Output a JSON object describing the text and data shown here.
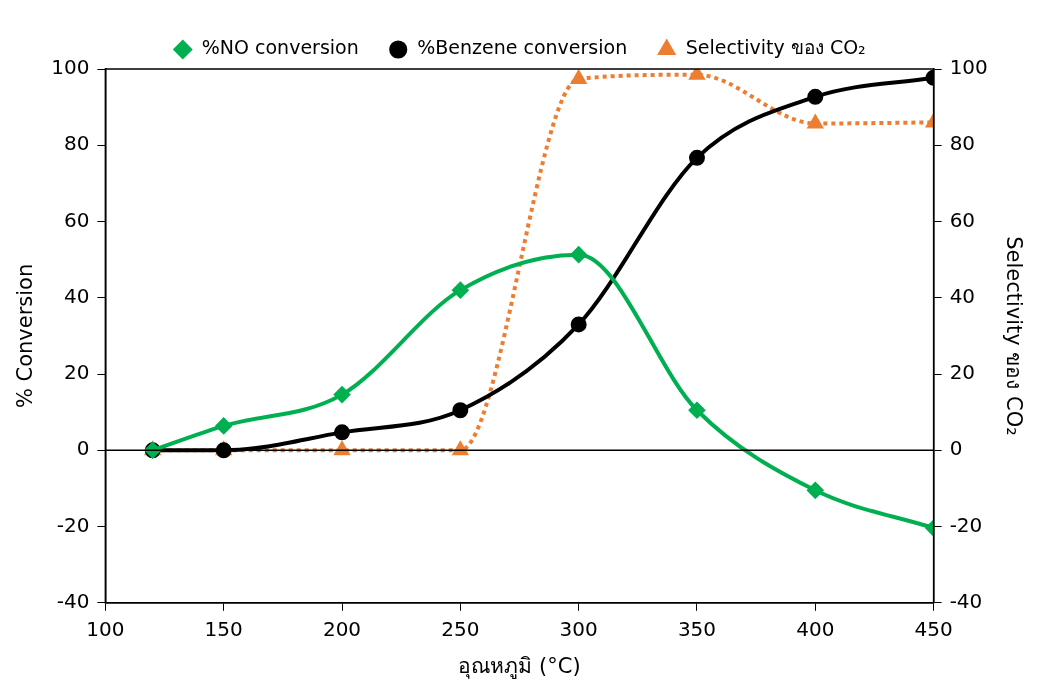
{
  "chart_data": {
    "type": "line",
    "xlabel": "อุณหภูมิ (°C)",
    "ylabel": "% Conversion",
    "y2label": "Selectivity ของ CO₂",
    "x": [
      120,
      150,
      200,
      250,
      300,
      350,
      400,
      450
    ],
    "series": [
      {
        "name": "%NO conversion",
        "color": "#00b050",
        "marker": "diamond",
        "line_style": "solid",
        "values": [
          0,
          6.4,
          14.6,
          42,
          51.3,
          10.5,
          -10.5,
          -20.4
        ]
      },
      {
        "name": "%Benzene conversion",
        "color": "#000000",
        "marker": "circle",
        "line_style": "solid",
        "values": [
          0,
          0,
          4.7,
          10.5,
          33,
          76.7,
          92.7,
          97.7
        ]
      },
      {
        "name": "Selectivity ของ CO₂",
        "color": "#ed7d31",
        "marker": "triangle",
        "line_style": "dotted",
        "axis": "y2",
        "values": [
          0,
          0,
          0,
          0,
          97.4,
          98.5,
          85.7,
          86
        ]
      }
    ],
    "xlim": [
      100,
      450
    ],
    "xticks": [
      100,
      150,
      200,
      250,
      300,
      350,
      400,
      450
    ],
    "ylim": [
      -40,
      100
    ],
    "yticks": [
      -40,
      -20,
      0,
      20,
      40,
      60,
      80,
      100
    ],
    "y2lim": [
      -40,
      100
    ],
    "y2ticks": [
      -40,
      -20,
      0,
      20,
      40,
      60,
      80,
      100
    ],
    "ref_lines": [
      {
        "axis": "y",
        "value": 0,
        "color": "#000000"
      }
    ],
    "grid": false,
    "legend": "top"
  }
}
